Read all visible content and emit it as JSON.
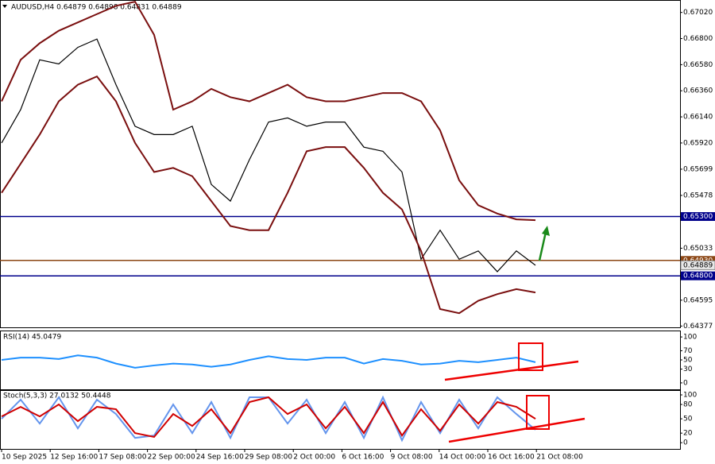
{
  "chart_data": [
    {
      "type": "line",
      "title": "AUDUSD,H4  0.64879 0.64898 0.64831 0.64889",
      "ylim": [
        0.64366,
        0.67125
      ],
      "yticks": [
        {
          "value": 0.6702,
          "label": "0.67020"
        },
        {
          "value": 0.668,
          "label": "0.66800"
        },
        {
          "value": 0.6658,
          "label": "0.66580"
        },
        {
          "value": 0.6636,
          "label": "0.66360"
        },
        {
          "value": 0.6614,
          "label": "0.66140"
        },
        {
          "value": 0.6592,
          "label": "0.65920"
        },
        {
          "value": 0.65699,
          "label": "0.65699"
        },
        {
          "value": 0.65478,
          "label": "0.65478"
        },
        {
          "value": 0.65033,
          "label": "0.65033"
        },
        {
          "value": 0.64595,
          "label": "0.64595"
        },
        {
          "value": 0.64377,
          "label": "0.64377"
        }
      ],
      "levels": [
        {
          "value": 0.653,
          "label": "0.65300",
          "color": "#00008b"
        },
        {
          "value": 0.6493,
          "label": "0.64930",
          "color": "#8b4513"
        },
        {
          "value": 0.648,
          "label": "0.64800",
          "color": "#00008b"
        }
      ],
      "current": {
        "value": 0.64889,
        "label": "0.64889"
      },
      "series": [
        {
          "name": "Close",
          "color": "#000000",
          "values": [
            0.6592,
            0.66201,
            0.66621,
            0.66586,
            0.66726,
            0.66796,
            0.66411,
            0.66061,
            0.65991,
            0.65991,
            0.66061,
            0.6557,
            0.6543,
            0.6578,
            0.66096,
            0.66131,
            0.66061,
            0.66096,
            0.66096,
            0.65885,
            0.6585,
            0.65675,
            0.6494,
            0.65185,
            0.6494,
            0.6501,
            0.64835,
            0.6501,
            0.64889
          ]
        },
        {
          "name": "Upper band",
          "color": "#7a0f0f",
          "values": [
            0.66271,
            0.66621,
            0.66761,
            0.66866,
            0.66936,
            0.67006,
            0.67076,
            0.67111,
            0.66831,
            0.66201,
            0.66271,
            0.66376,
            0.66306,
            0.66271,
            0.66341,
            0.66411,
            0.66306,
            0.66271,
            0.66271,
            0.66306,
            0.66341,
            0.66341,
            0.66271,
            0.66026,
            0.65605,
            0.65395,
            0.65325,
            0.65276,
            0.65269
          ]
        },
        {
          "name": "Lower band",
          "color": "#7a0f0f",
          "values": [
            0.655,
            0.65745,
            0.65991,
            0.66271,
            0.66411,
            0.66481,
            0.66271,
            0.6592,
            0.65675,
            0.6571,
            0.6564,
            0.6543,
            0.6522,
            0.65185,
            0.65185,
            0.655,
            0.6585,
            0.65885,
            0.65885,
            0.6571,
            0.655,
            0.6536,
            0.6501,
            0.6452,
            0.64485,
            0.6459,
            0.64646,
            0.64688,
            0.6466
          ]
        }
      ]
    },
    {
      "type": "line",
      "title": "RSI(14) 45.0479",
      "ylim": [
        -14,
        114
      ],
      "yticks": [
        0,
        30,
        50,
        70,
        100
      ],
      "series": [
        {
          "name": "RSI",
          "color": "#1e90ff",
          "values": [
            50,
            55,
            55,
            52,
            60,
            55,
            42,
            33,
            38,
            42,
            40,
            35,
            40,
            50,
            58,
            52,
            50,
            55,
            55,
            42,
            52,
            48,
            40,
            42,
            48,
            45,
            50,
            55,
            45
          ]
        }
      ]
    },
    {
      "type": "line",
      "title": "Stoch(5,3,3) 27.0132 50.4448",
      "ylim": [
        -13,
        110
      ],
      "yticks": [
        0,
        20,
        50,
        80,
        100
      ],
      "series": [
        {
          "name": "%K",
          "color": "#6495ed",
          "values": [
            50,
            90,
            40,
            95,
            30,
            90,
            60,
            10,
            15,
            80,
            20,
            85,
            10,
            95,
            95,
            40,
            90,
            20,
            85,
            10,
            95,
            5,
            85,
            20,
            90,
            30,
            95,
            60,
            27
          ]
        },
        {
          "name": "%D",
          "color": "#d00000",
          "values": [
            55,
            75,
            55,
            80,
            45,
            75,
            70,
            20,
            12,
            60,
            35,
            70,
            20,
            85,
            95,
            60,
            80,
            30,
            75,
            20,
            85,
            15,
            70,
            25,
            80,
            40,
            85,
            75,
            50
          ]
        }
      ]
    }
  ],
  "time_labels": [
    "10 Sep 2025",
    "12 Sep 16:00",
    "17 Sep 08:00",
    "22 Sep 00:00",
    "24 Sep 16:00",
    "29 Sep 08:00",
    "2 Oct 00:00",
    "6 Oct 16:00",
    "9 Oct 08:00",
    "14 Oct 00:00",
    "16 Oct 16:00",
    "21 Oct 08:00"
  ]
}
